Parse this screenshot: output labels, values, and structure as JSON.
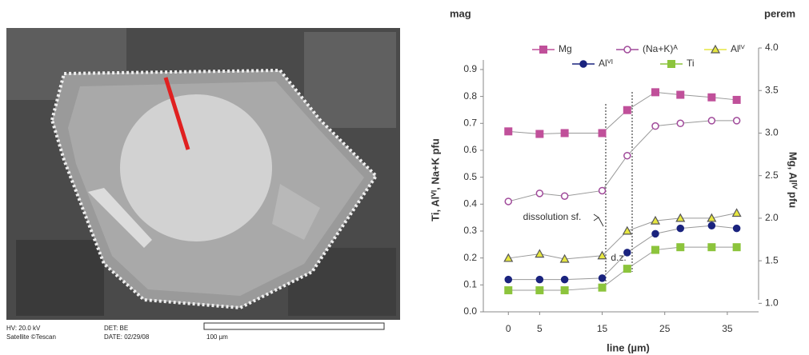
{
  "image_info": {
    "hv": "HV: 20.0 kV",
    "vendor": "Satellite ©Tescan",
    "det": "DET: BE",
    "date": "DATE: 02/29/08",
    "scale": "100 µm"
  },
  "chart_data": {
    "type": "line",
    "x_label": "line (µm)",
    "y_label": "Ti, Alⱽᴵ, Na+K pfu",
    "y2_label": "Mg, Alᴵⱽ pfu",
    "annotations": {
      "left_end": "mag",
      "right_end": "perem",
      "zone": "d.z.",
      "surface": "dissolution sf."
    },
    "x": [
      0,
      5,
      9,
      15,
      19,
      23.5,
      27.5,
      32.5,
      36.5
    ],
    "xlim": [
      -4,
      40
    ],
    "xticks": [
      0,
      5,
      15,
      25,
      35
    ],
    "ylim": [
      0,
      0.98
    ],
    "yticks": [
      {
        "value": 0,
        "label": "0.0"
      },
      0.1,
      0.2,
      0.3,
      0.4,
      0.5,
      0.6,
      0.7,
      0.8,
      0.9
    ],
    "y2lim": [
      0.9,
      4.0
    ],
    "y2ticks": [
      {
        "value": 1,
        "label": "1.0"
      },
      1.5,
      {
        "value": 2,
        "label": "2.0"
      },
      2.5,
      {
        "value": 3,
        "label": "3.0"
      },
      3.5,
      {
        "value": 4,
        "label": "4.0"
      }
    ],
    "grid": false,
    "series": [
      {
        "name": "Mg",
        "color": "#c0509a",
        "marker": "square",
        "filled": true,
        "axis": "y2",
        "values": [
          3.02,
          2.99,
          3.0,
          3.0,
          3.27,
          3.48,
          3.45,
          3.42,
          3.39
        ]
      },
      {
        "name": "(Na+K)ᴬ",
        "color": "#a04a9a",
        "marker": "circle",
        "filled": false,
        "values": [
          0.41,
          0.44,
          0.43,
          0.45,
          0.58,
          0.69,
          0.7,
          0.71,
          0.71
        ]
      },
      {
        "name": "Alᴵⱽ",
        "color": "#e6e640",
        "marker": "triangle",
        "filled": true,
        "axis": "y2",
        "values": [
          1.53,
          1.58,
          1.52,
          1.56,
          1.85,
          1.97,
          2.0,
          2.0,
          2.06
        ]
      },
      {
        "name": "Alⱽᴵ",
        "color": "#1a237e",
        "marker": "circle",
        "filled": true,
        "values": [
          0.12,
          0.12,
          0.12,
          0.125,
          0.22,
          0.29,
          0.31,
          0.32,
          0.31
        ]
      },
      {
        "name": "Ti",
        "color": "#8cc43c",
        "marker": "square",
        "filled": true,
        "values": [
          0.08,
          0.08,
          0.08,
          0.09,
          0.16,
          0.23,
          0.24,
          0.24,
          0.24
        ]
      }
    ]
  }
}
